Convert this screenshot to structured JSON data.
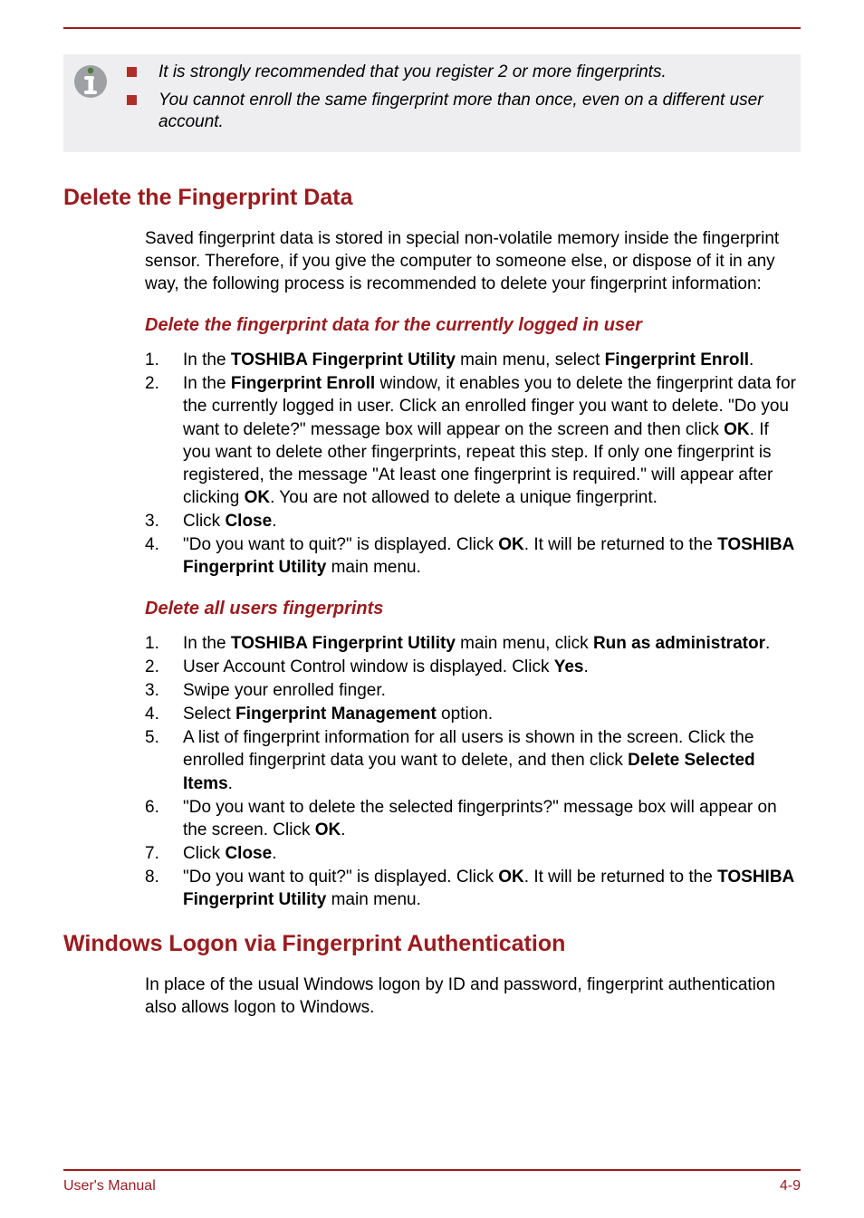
{
  "colors": {
    "accent": "#9a1b1e",
    "bullet": "#b22d2a",
    "noteBg": "#eeeef0",
    "text": "#000000",
    "pageBg": "#ffffff"
  },
  "typography": {
    "body_fontsize": 19,
    "h2_fontsize": 25,
    "h3_fontsize": 20,
    "footer_fontsize": 16,
    "line_height": 1.32
  },
  "note": {
    "bullets": [
      "It is strongly recommended that you register 2 or more fingerprints.",
      "You cannot enroll the same fingerprint more than once, even on a different user account."
    ]
  },
  "section1": {
    "heading": "Delete the Fingerprint Data",
    "intro": "Saved fingerprint data is stored in special non-volatile memory inside the fingerprint sensor. Therefore, if you give the computer to someone else, or dispose of it in any way, the following process is recommended to delete your fingerprint information:",
    "sub1": {
      "heading": "Delete the fingerprint data for the currently logged in user",
      "items": [
        [
          {
            "t": "In the "
          },
          {
            "t": "TOSHIBA Fingerprint Utility",
            "b": true
          },
          {
            "t": " main menu, select "
          },
          {
            "t": "Fingerprint Enroll",
            "b": true
          },
          {
            "t": "."
          }
        ],
        [
          {
            "t": "In the "
          },
          {
            "t": "Fingerprint Enroll",
            "b": true
          },
          {
            "t": " window, it enables you to delete the fingerprint data for the currently logged in user. Click an enrolled finger you want to delete. \"Do you want to delete?\" message box will appear on the screen and then click "
          },
          {
            "t": "OK",
            "b": true
          },
          {
            "t": ". If you want to delete other fingerprints, repeat this step. If only one fingerprint is registered, the message \"At least one fingerprint is required.\" will appear after clicking "
          },
          {
            "t": "OK",
            "b": true
          },
          {
            "t": ". You are not allowed to delete a unique fingerprint."
          }
        ],
        [
          {
            "t": "Click "
          },
          {
            "t": "Close",
            "b": true
          },
          {
            "t": "."
          }
        ],
        [
          {
            "t": "\"Do you want to quit?\" is displayed. Click "
          },
          {
            "t": "OK",
            "b": true
          },
          {
            "t": ". It will be returned to the "
          },
          {
            "t": "TOSHIBA Fingerprint Utility",
            "b": true
          },
          {
            "t": " main menu."
          }
        ]
      ]
    },
    "sub2": {
      "heading": "Delete all users fingerprints",
      "items": [
        [
          {
            "t": "In the "
          },
          {
            "t": "TOSHIBA Fingerprint Utility",
            "b": true
          },
          {
            "t": " main menu, click "
          },
          {
            "t": "Run as administrator",
            "b": true
          },
          {
            "t": "."
          }
        ],
        [
          {
            "t": "User Account Control window is displayed. Click "
          },
          {
            "t": "Yes",
            "b": true
          },
          {
            "t": "."
          }
        ],
        [
          {
            "t": "Swipe your enrolled finger."
          }
        ],
        [
          {
            "t": "Select "
          },
          {
            "t": "Fingerprint Management",
            "b": true
          },
          {
            "t": " option."
          }
        ],
        [
          {
            "t": "A list of fingerprint information for all users is shown in the screen. Click the enrolled fingerprint data you want to delete, and then click "
          },
          {
            "t": "Delete Selected Items",
            "b": true
          },
          {
            "t": "."
          }
        ],
        [
          {
            "t": "\"Do you want to delete the selected fingerprints?\" message box will appear on the screen. Click "
          },
          {
            "t": "OK",
            "b": true
          },
          {
            "t": "."
          }
        ],
        [
          {
            "t": "Click "
          },
          {
            "t": "Close",
            "b": true
          },
          {
            "t": "."
          }
        ],
        [
          {
            "t": "\"Do you want to quit?\" is displayed. Click "
          },
          {
            "t": "OK",
            "b": true
          },
          {
            "t": ". It will be returned to the "
          },
          {
            "t": "TOSHIBA Fingerprint Utility",
            "b": true
          },
          {
            "t": " main menu."
          }
        ]
      ]
    }
  },
  "section2": {
    "heading": "Windows Logon via Fingerprint Authentication",
    "intro": "In place of the usual Windows logon by ID and password, fingerprint authentication also allows logon to Windows."
  },
  "footer": {
    "left": "User's Manual",
    "right": "4-9"
  }
}
